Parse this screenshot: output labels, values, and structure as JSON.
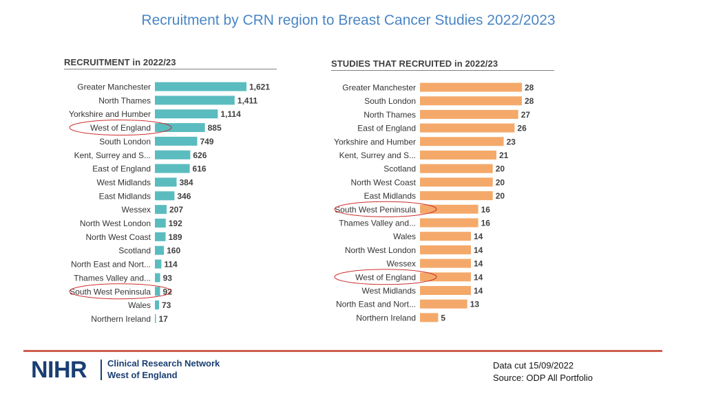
{
  "slide": {
    "title": "Recruitment by CRN region to Breast Cancer Studies 2022/2023",
    "footnote_date": "Data cut 15/09/2022",
    "footnote_source": "Source: ODP All Portfolio"
  },
  "logo": {
    "brand": "NIHR",
    "line1": "Clinical Research Network",
    "line2": "West of England"
  },
  "colors": {
    "title": "#4a86c5",
    "recruitment_bar": "#5bbcbf",
    "studies_bar": "#f4a96a",
    "highlight_ellipse": "#cc2a2a",
    "footer_rule": "#cf5d4c",
    "logo": "#193e72"
  },
  "chart_data": [
    {
      "type": "bar",
      "orientation": "horizontal",
      "title": "RECRUITMENT in 2022/23",
      "categories": [
        "Greater Manchester",
        "North Thames",
        "Yorkshire and Humber",
        "West of England",
        "South London",
        "Kent, Surrey and S...",
        "East of England",
        "West Midlands",
        "East Midlands",
        "Wessex",
        "North West London",
        "North West Coast",
        "Scotland",
        "North East and Nort...",
        "Thames Valley and...",
        "South West Peninsula",
        "Wales",
        "Northern Ireland"
      ],
      "values": [
        1621,
        1411,
        1114,
        885,
        749,
        626,
        616,
        384,
        346,
        207,
        192,
        189,
        160,
        114,
        93,
        92,
        73,
        17
      ],
      "value_labels": [
        "1,621",
        "1,411",
        "1,114",
        "885",
        "749",
        "626",
        "616",
        "384",
        "346",
        "207",
        "192",
        "189",
        "160",
        "114",
        "93",
        "92",
        "73",
        "17"
      ],
      "xlim": [
        0,
        1621
      ],
      "highlighted": [
        "West of England",
        "South West Peninsula"
      ],
      "grid": false
    },
    {
      "type": "bar",
      "orientation": "horizontal",
      "title": "STUDIES THAT RECRUITED in 2022/23",
      "categories": [
        "Greater Manchester",
        "South London",
        "North Thames",
        "East of England",
        "Yorkshire and Humber",
        "Kent, Surrey and S...",
        "Scotland",
        "North West Coast",
        "East Midlands",
        "South West Peninsula",
        "Thames Valley and...",
        "Wales",
        "North West London",
        "Wessex",
        "West of England",
        "West Midlands",
        "North East and Nort...",
        "Northern Ireland"
      ],
      "values": [
        28,
        28,
        27,
        26,
        23,
        21,
        20,
        20,
        20,
        16,
        16,
        14,
        14,
        14,
        14,
        14,
        13,
        5
      ],
      "value_labels": [
        "28",
        "28",
        "27",
        "26",
        "23",
        "21",
        "20",
        "20",
        "20",
        "16",
        "16",
        "14",
        "14",
        "14",
        "14",
        "14",
        "13",
        "5"
      ],
      "xlim": [
        0,
        28
      ],
      "highlighted": [
        "South West Peninsula",
        "West of England"
      ],
      "grid": false
    }
  ]
}
